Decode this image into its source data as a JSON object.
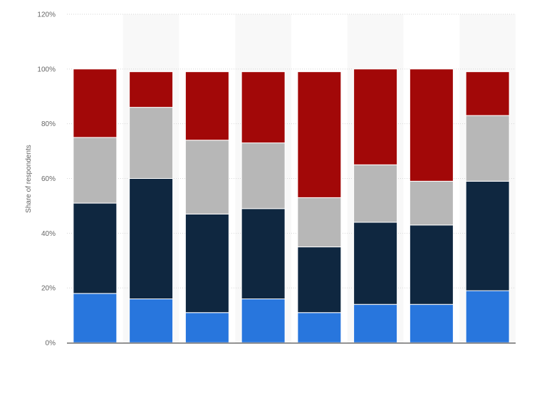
{
  "chart_data": {
    "type": "bar",
    "stacked": true,
    "title": "",
    "xlabel": "",
    "ylabel": "Share of respondents",
    "ylim": [
      0,
      120
    ],
    "yticks": [
      0,
      20,
      40,
      60,
      80,
      100,
      120
    ],
    "ytick_labels": [
      "0%",
      "20%",
      "40%",
      "60%",
      "80%",
      "100%",
      "120%"
    ],
    "grid": true,
    "legend": "none",
    "categories": [
      "",
      "",
      "",
      "",
      "",
      "",
      "",
      ""
    ],
    "series": [
      {
        "color": "#2876dd",
        "values": [
          18,
          16,
          11,
          16,
          11,
          14,
          14,
          19
        ]
      },
      {
        "color": "#0f2740",
        "values": [
          33,
          44,
          36,
          33,
          24,
          30,
          29,
          40
        ]
      },
      {
        "color": "#b7b7b7",
        "values": [
          24,
          26,
          27,
          24,
          18,
          21,
          16,
          24
        ]
      },
      {
        "color": "#a20808",
        "values": [
          25,
          13,
          25,
          26,
          46,
          35,
          41,
          16
        ]
      }
    ]
  }
}
